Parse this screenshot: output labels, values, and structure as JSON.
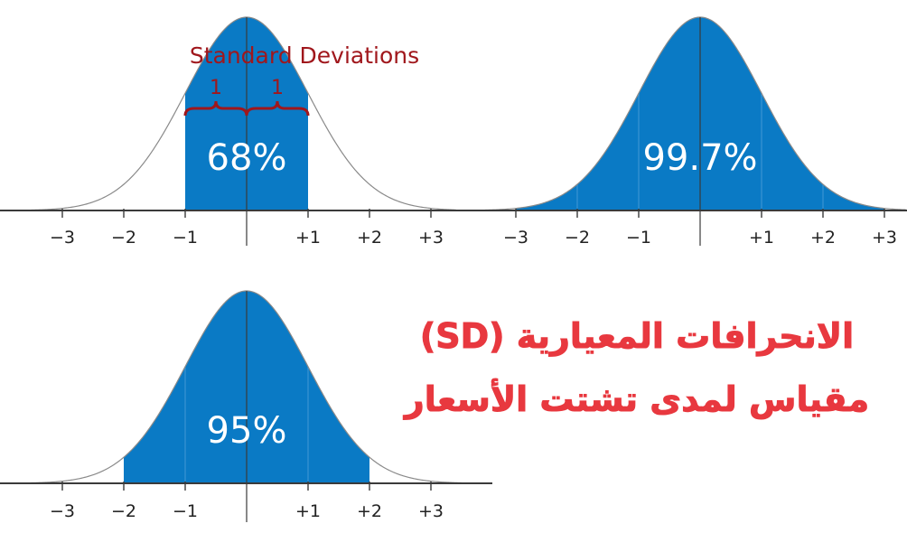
{
  "panels": [
    {
      "id": "sd1",
      "shade_from": -1,
      "shade_to": 1,
      "percent_label": "68%",
      "tick_labels": [
        "−3",
        "−2",
        "−1",
        "+1",
        "+2",
        "+3"
      ],
      "annotation": {
        "title": "Standard Deviations",
        "brace_left_label": "1",
        "brace_right_label": "1"
      }
    },
    {
      "id": "sd3",
      "shade_from": -3,
      "shade_to": 3,
      "percent_label": "99.7%",
      "tick_labels": [
        "−3",
        "−2",
        "−1",
        "+1",
        "+2",
        "+3"
      ]
    },
    {
      "id": "sd2",
      "shade_from": -2,
      "shade_to": 2,
      "percent_label": "95%",
      "tick_labels": [
        "−3",
        "−2",
        "−1",
        "+1",
        "+2",
        "+3"
      ]
    }
  ],
  "caption": {
    "line1": "الانحرافات المعيارية (SD)",
    "line2": "مقياس لمدى تشتت الأسعار"
  },
  "colors": {
    "fill": "#0a7ac5",
    "curve": "#8a8a8a",
    "axis": "#3a3a3a",
    "annotation": "#a0171c",
    "caption": "#e8383f",
    "percent_text": "#ffffff"
  }
}
